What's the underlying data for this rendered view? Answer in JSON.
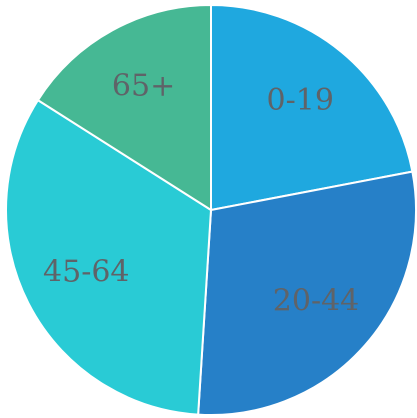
{
  "chart_data": {
    "type": "pie",
    "categories": [
      "0-19",
      "20-44",
      "45-64",
      "65+"
    ],
    "values": [
      22,
      29,
      33,
      16
    ],
    "colors": [
      "#1fa8df",
      "#2680c8",
      "#29cbd5",
      "#46b894"
    ],
    "start_angle_deg": 0,
    "direction": "clockwise",
    "legend": "none"
  }
}
